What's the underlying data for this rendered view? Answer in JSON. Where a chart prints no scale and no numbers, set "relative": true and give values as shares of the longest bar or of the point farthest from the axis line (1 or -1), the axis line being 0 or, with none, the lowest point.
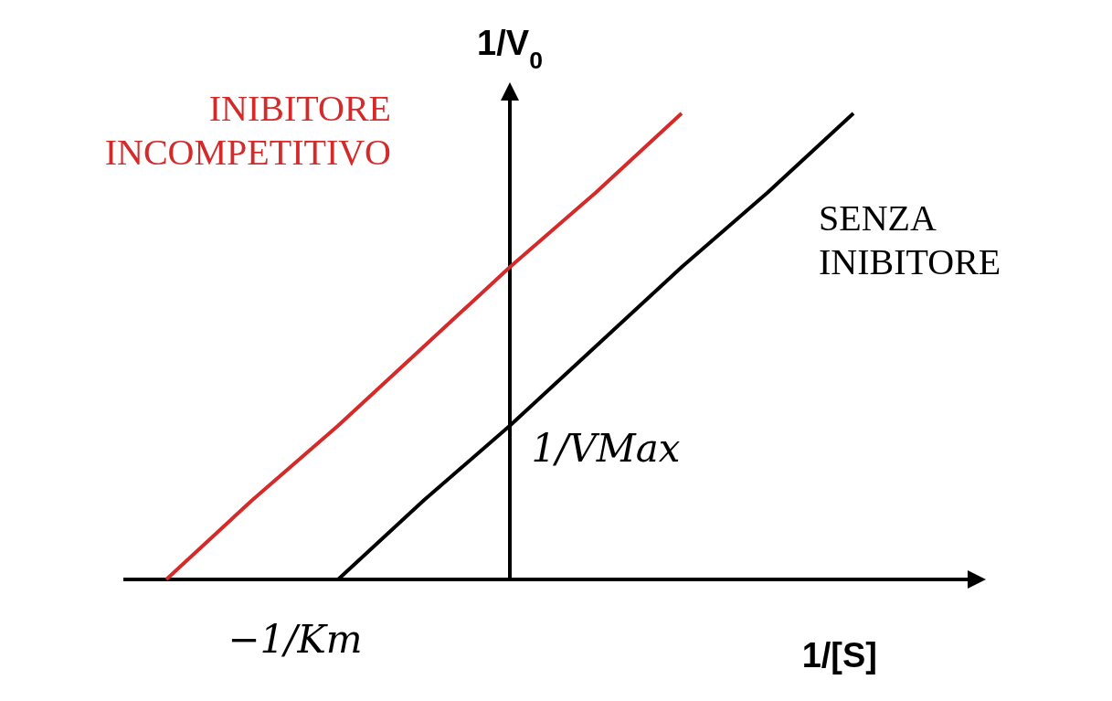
{
  "chart_data": {
    "type": "line",
    "xlabel": "1/[S]",
    "ylabel": "1/V$_{0}$",
    "relative": true,
    "categories": [
      null,
      null,
      null,
      null,
      null,
      null,
      null,
      null,
      null,
      null
    ],
    "annotations": [
      "−1/Km",
      "1/VMax"
    ],
    "legend": false,
    "marker": "none",
    "line_style": "solid",
    "series": [
      {
        "name": "INIBITORE INCOMPETITIVO",
        "color": "#d42a2a",
        "values": [
          0,
          0.17,
          0.33,
          0.5,
          0.67,
          0.83,
          1,
          null,
          null,
          null
        ]
      },
      {
        "name": "SENZA INIBITORE",
        "color": "#000000",
        "values": [
          null,
          null,
          0,
          0.17,
          0.33,
          0.5,
          0.67,
          0.83,
          1,
          null
        ]
      }
    ]
  }
}
